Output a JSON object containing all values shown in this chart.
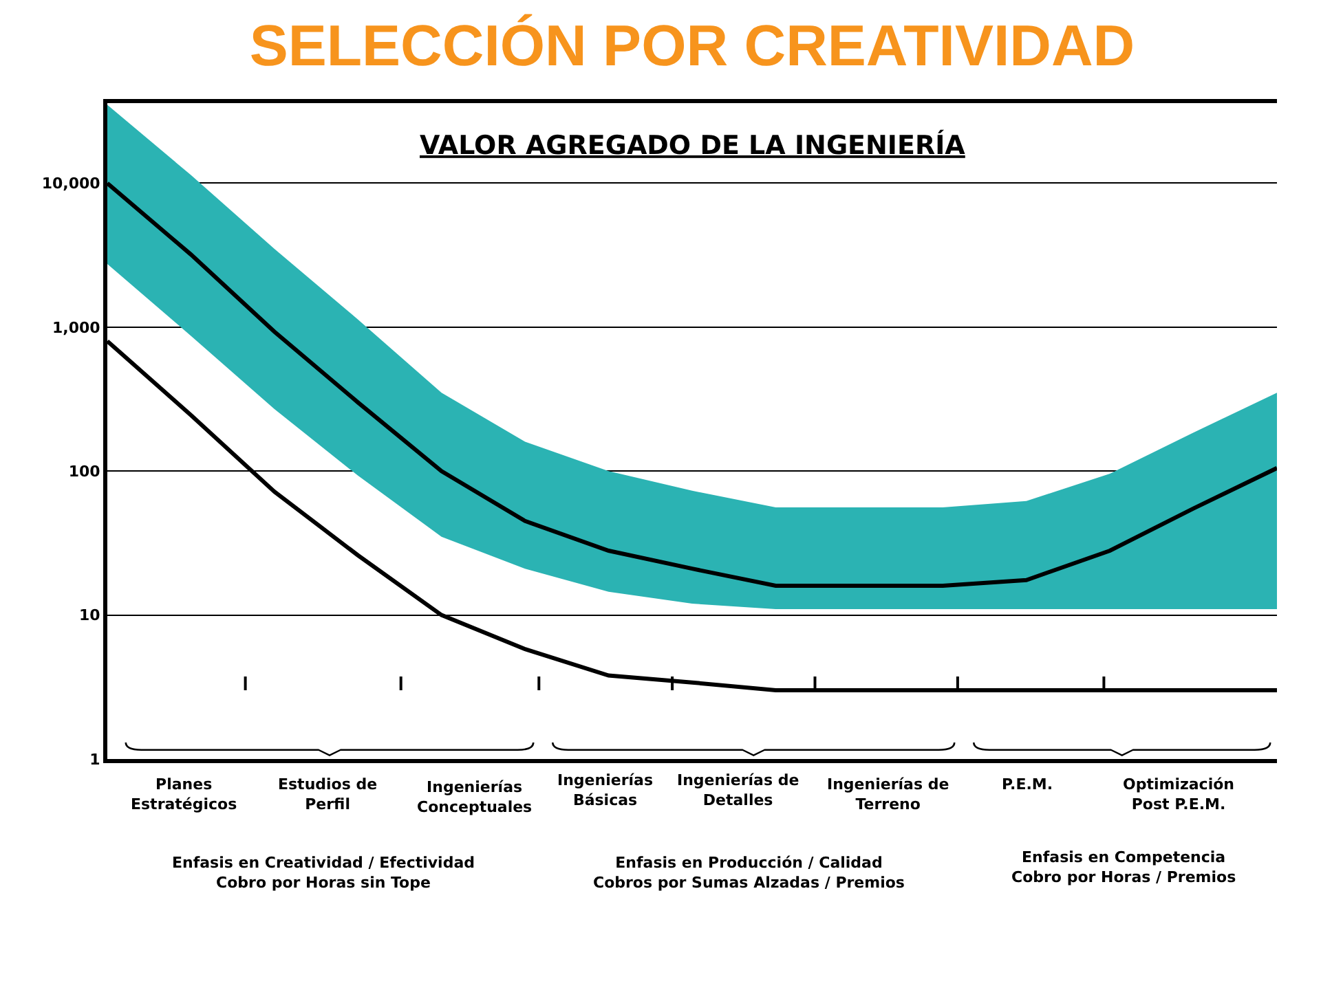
{
  "chart_data": {
    "type": "line",
    "title": "SELECCIÓN POR CREATIVIDAD",
    "subtitle": "VALOR AGREGADO DE LA INGENIERÍA",
    "categories": [
      null,
      null,
      null,
      null,
      null,
      null,
      null,
      null,
      null,
      null,
      null,
      null,
      null,
      null,
      null
    ],
    "series": [
      {
        "color": "#000000",
        "values": [
          10000,
          3200,
          930,
          300,
          100,
          45,
          28,
          21,
          16,
          16,
          16,
          17.5,
          28,
          55,
          105
        ],
        "lower": [
          2750,
          870,
          270,
          93,
          35,
          21,
          14.5,
          12,
          11,
          11,
          11,
          11,
          11,
          11,
          11
        ],
        "upper": [
          35000,
          11400,
          3500,
          1130,
          350,
          160,
          100,
          73,
          56,
          56,
          56,
          62,
          96,
          185,
          350
        ]
      },
      {
        "color": "#000000",
        "values": [
          800,
          245,
          72,
          26,
          10,
          5.8,
          3.8,
          3.4,
          3,
          3,
          3,
          3,
          3,
          3,
          3
        ]
      }
    ],
    "log": "y",
    "ylim": [
      1,
      36000
    ],
    "yticks": [
      1,
      10,
      100,
      {
        "value": 1000,
        "label": "1,000"
      },
      {
        "value": 10000,
        "label": "10,000"
      }
    ],
    "tick_labels": "y",
    "grid": "y",
    "marker": "none",
    "line_style": "solid",
    "annotations": [
      "Planes\nEstratégicos",
      "Estudios de\nPerfil",
      "Ingenierías\nConceptuales",
      "Ingenierías\nBásicas",
      "Ingenierías de\nDetalles",
      "Ingenierías de\nTerreno",
      "P.E.M.",
      "Optimización\nPost P.E.M.",
      "Enfasis en Creatividad / Efectividad\nCobro por Horas sin Tope",
      "Enfasis en Producción / Calidad\nCobros por Sumas Alzadas / Premios",
      "Enfasis en Competencia\nCobro por Horas / Premios"
    ]
  }
}
